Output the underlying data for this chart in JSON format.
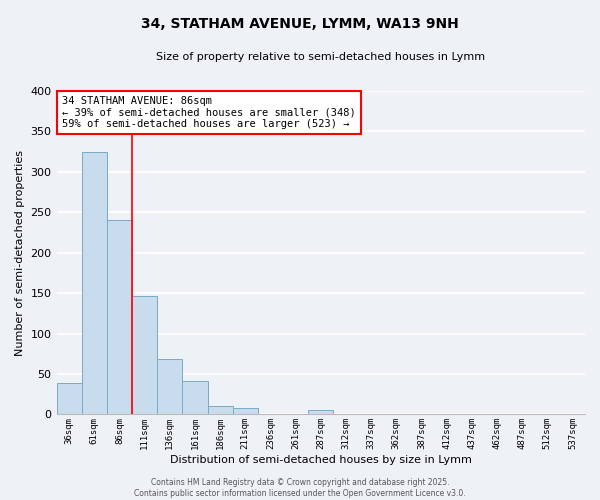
{
  "title": "34, STATHAM AVENUE, LYMM, WA13 9NH",
  "subtitle": "Size of property relative to semi-detached houses in Lymm",
  "xlabel": "Distribution of semi-detached houses by size in Lymm",
  "ylabel": "Number of semi-detached properties",
  "bar_color": "#c8dced",
  "bar_edge_color": "#7aaac8",
  "bin_labels": [
    "36sqm",
    "61sqm",
    "86sqm",
    "111sqm",
    "136sqm",
    "161sqm",
    "186sqm",
    "211sqm",
    "236sqm",
    "261sqm",
    "287sqm",
    "312sqm",
    "337sqm",
    "362sqm",
    "387sqm",
    "412sqm",
    "437sqm",
    "462sqm",
    "487sqm",
    "512sqm",
    "537sqm"
  ],
  "bar_heights": [
    39,
    325,
    241,
    147,
    69,
    41,
    11,
    8,
    1,
    1,
    6,
    1,
    0,
    0,
    0,
    0,
    0,
    0,
    0,
    0,
    1
  ],
  "red_line_index": 2,
  "ylim": [
    0,
    400
  ],
  "yticks": [
    0,
    50,
    100,
    150,
    200,
    250,
    300,
    350,
    400
  ],
  "annotation_title": "34 STATHAM AVENUE: 86sqm",
  "annotation_line1": "← 39% of semi-detached houses are smaller (348)",
  "annotation_line2": "59% of semi-detached houses are larger (523) →",
  "footer_line1": "Contains HM Land Registry data © Crown copyright and database right 2025.",
  "footer_line2": "Contains public sector information licensed under the Open Government Licence v3.0.",
  "background_color": "#eef2f7",
  "grid_color": "#ffffff"
}
